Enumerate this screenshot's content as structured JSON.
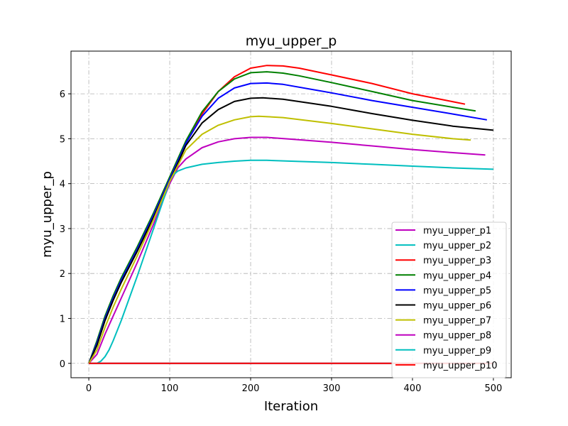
{
  "chart_data": {
    "type": "line",
    "title": "myu_upper_p",
    "xlabel": "Iteration",
    "ylabel": "myu_upper_p",
    "xlim": [
      -22,
      522
    ],
    "ylim": [
      -0.32,
      6.95
    ],
    "xticks": [
      0,
      100,
      200,
      300,
      400,
      500
    ],
    "yticks": [
      0,
      1,
      2,
      3,
      4,
      5,
      6
    ],
    "grid": true,
    "grid_style": "dash-dot gray",
    "legend_position": "lower-right",
    "series": [
      {
        "name": "myu_upper_p1",
        "color": "#bf00bf",
        "x": [
          0,
          10,
          20,
          30,
          40,
          60,
          80,
          100,
          110,
          120,
          140,
          160,
          180,
          200,
          220,
          250,
          300,
          350,
          400,
          450,
          490
        ],
        "y": [
          0,
          0.2,
          0.65,
          1.05,
          1.45,
          2.25,
          3.1,
          4.0,
          4.35,
          4.55,
          4.8,
          4.93,
          5.0,
          5.03,
          5.03,
          4.99,
          4.92,
          4.84,
          4.76,
          4.69,
          4.64
        ]
      },
      {
        "name": "myu_upper_p2",
        "color": "#00bfbf",
        "x": [
          0,
          10,
          15,
          20,
          25,
          30,
          40,
          60,
          80,
          100,
          105,
          110,
          120,
          140,
          160,
          180,
          200,
          220,
          250,
          300,
          350,
          400,
          450,
          500
        ],
        "y": [
          0,
          0,
          0.05,
          0.15,
          0.3,
          0.5,
          0.95,
          1.95,
          3.0,
          4.05,
          4.2,
          4.28,
          4.35,
          4.43,
          4.47,
          4.5,
          4.52,
          4.52,
          4.5,
          4.47,
          4.43,
          4.39,
          4.35,
          4.32
        ]
      },
      {
        "name": "myu_upper_p3",
        "color": "#ff0000",
        "x": [
          0,
          10,
          20,
          30,
          40,
          60,
          80,
          100,
          120,
          140,
          160,
          180,
          200,
          220,
          240,
          260,
          300,
          350,
          400,
          440,
          465
        ],
        "y": [
          0,
          0.45,
          1.0,
          1.45,
          1.85,
          2.55,
          3.3,
          4.1,
          4.9,
          5.55,
          6.05,
          6.38,
          6.57,
          6.63,
          6.62,
          6.57,
          6.42,
          6.23,
          6.0,
          5.86,
          5.77
        ]
      },
      {
        "name": "myu_upper_p4",
        "color": "#008000",
        "x": [
          0,
          10,
          20,
          30,
          40,
          60,
          80,
          100,
          120,
          140,
          160,
          180,
          200,
          220,
          240,
          260,
          300,
          350,
          400,
          450,
          478
        ],
        "y": [
          0,
          0.5,
          1.05,
          1.5,
          1.9,
          2.6,
          3.35,
          4.15,
          4.95,
          5.6,
          6.05,
          6.33,
          6.47,
          6.49,
          6.46,
          6.4,
          6.25,
          6.05,
          5.85,
          5.7,
          5.62
        ]
      },
      {
        "name": "myu_upper_p5",
        "color": "#0000ff",
        "x": [
          0,
          10,
          20,
          30,
          40,
          60,
          80,
          100,
          120,
          140,
          160,
          180,
          200,
          220,
          240,
          300,
          350,
          400,
          450,
          492
        ],
        "y": [
          0,
          0.45,
          1.0,
          1.45,
          1.85,
          2.55,
          3.3,
          4.1,
          4.9,
          5.5,
          5.9,
          6.13,
          6.23,
          6.24,
          6.21,
          6.02,
          5.85,
          5.7,
          5.55,
          5.42
        ]
      },
      {
        "name": "myu_upper_p6",
        "color": "#000000",
        "x": [
          0,
          10,
          20,
          30,
          40,
          60,
          80,
          100,
          120,
          140,
          160,
          180,
          200,
          215,
          240,
          300,
          350,
          400,
          450,
          500
        ],
        "y": [
          0,
          0.4,
          0.95,
          1.4,
          1.8,
          2.5,
          3.25,
          4.05,
          4.85,
          5.35,
          5.65,
          5.83,
          5.9,
          5.91,
          5.88,
          5.72,
          5.56,
          5.41,
          5.28,
          5.19
        ]
      },
      {
        "name": "myu_upper_p7",
        "color": "#bfbf00",
        "x": [
          0,
          10,
          20,
          30,
          40,
          60,
          80,
          100,
          120,
          140,
          160,
          180,
          200,
          210,
          240,
          300,
          350,
          400,
          450,
          472
        ],
        "y": [
          0,
          0.3,
          0.8,
          1.25,
          1.65,
          2.4,
          3.2,
          4.05,
          4.75,
          5.1,
          5.3,
          5.42,
          5.49,
          5.5,
          5.47,
          5.34,
          5.22,
          5.1,
          5.0,
          4.97
        ]
      },
      {
        "name": "myu_upper_p8",
        "color": "#bf00bf",
        "x": [
          0,
          500
        ],
        "y": [
          0,
          0
        ]
      },
      {
        "name": "myu_upper_p9",
        "color": "#00bfbf",
        "x": [
          0,
          500
        ],
        "y": [
          0,
          0
        ]
      },
      {
        "name": "myu_upper_p10",
        "color": "#ff0000",
        "x": [
          0,
          500
        ],
        "y": [
          0,
          0
        ]
      }
    ]
  }
}
